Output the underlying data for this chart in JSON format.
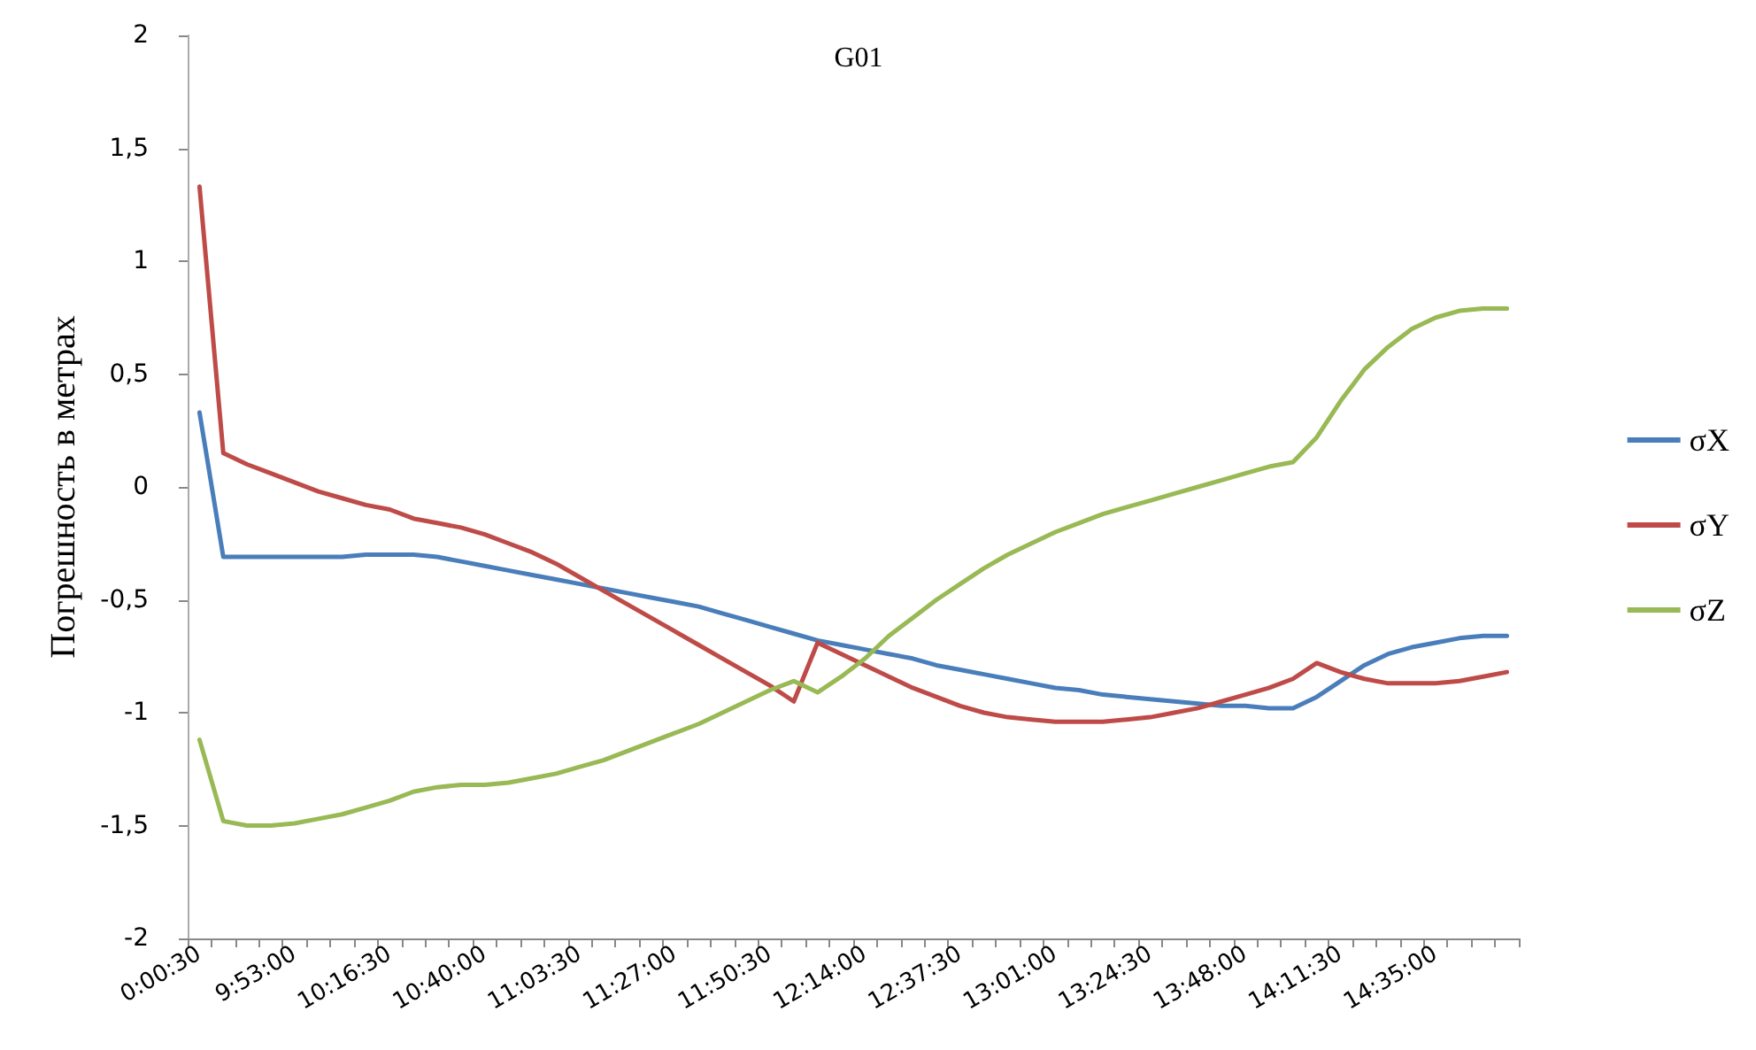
{
  "chart_data": {
    "type": "line",
    "title": "G01",
    "ylabel": "Погрешность в метрах",
    "categories": [
      "0:00:30",
      null,
      null,
      null,
      "9:53:00",
      null,
      null,
      null,
      "10:16:30",
      null,
      null,
      null,
      "10:40:00",
      null,
      null,
      null,
      "11:03:30",
      null,
      null,
      null,
      "11:27:00",
      null,
      null,
      null,
      "11:50:30",
      null,
      null,
      null,
      "12:14:00",
      null,
      null,
      null,
      "12:37:30",
      null,
      null,
      null,
      "13:01:00",
      null,
      null,
      null,
      "13:24:30",
      null,
      null,
      null,
      "13:48:00",
      null,
      null,
      null,
      "14:11:30",
      null,
      null,
      null,
      "14:35:00",
      null,
      null,
      null
    ],
    "series": [
      {
        "name": "σX",
        "color": "#4a7ebb",
        "values": [
          0.33,
          -0.31,
          -0.31,
          -0.31,
          -0.31,
          -0.31,
          -0.31,
          -0.3,
          -0.3,
          -0.3,
          -0.31,
          -0.33,
          -0.35,
          -0.37,
          -0.39,
          -0.41,
          -0.43,
          -0.45,
          -0.47,
          -0.49,
          -0.51,
          -0.53,
          -0.56,
          -0.59,
          -0.62,
          -0.65,
          -0.68,
          -0.7,
          -0.72,
          -0.74,
          -0.76,
          -0.79,
          -0.81,
          -0.83,
          -0.85,
          -0.87,
          -0.89,
          -0.9,
          -0.92,
          -0.93,
          -0.94,
          -0.95,
          -0.96,
          -0.97,
          -0.97,
          -0.98,
          -0.98,
          -0.93,
          -0.86,
          -0.79,
          -0.74,
          -0.71,
          -0.69,
          -0.67,
          -0.66,
          -0.66
        ]
      },
      {
        "name": "σY",
        "color": "#be4b48",
        "values": [
          1.33,
          0.15,
          0.1,
          0.06,
          0.02,
          -0.02,
          -0.05,
          -0.08,
          -0.1,
          -0.14,
          -0.16,
          -0.18,
          -0.21,
          -0.25,
          -0.29,
          -0.34,
          -0.4,
          -0.46,
          -0.52,
          -0.58,
          -0.64,
          -0.7,
          -0.76,
          -0.82,
          -0.88,
          -0.95,
          -0.69,
          -0.74,
          -0.79,
          -0.84,
          -0.89,
          -0.93,
          -0.97,
          -1.0,
          -1.02,
          -1.03,
          -1.04,
          -1.04,
          -1.04,
          -1.03,
          -1.02,
          -1.0,
          -0.98,
          -0.95,
          -0.92,
          -0.89,
          -0.85,
          -0.78,
          -0.82,
          -0.85,
          -0.87,
          -0.87,
          -0.87,
          -0.86,
          -0.84,
          -0.82
        ]
      },
      {
        "name": "σZ",
        "color": "#98b954",
        "values": [
          -1.12,
          -1.48,
          -1.5,
          -1.5,
          -1.49,
          -1.47,
          -1.45,
          -1.42,
          -1.39,
          -1.35,
          -1.33,
          -1.32,
          -1.32,
          -1.31,
          -1.29,
          -1.27,
          -1.24,
          -1.21,
          -1.17,
          -1.13,
          -1.09,
          -1.05,
          -1.0,
          -0.95,
          -0.9,
          -0.86,
          -0.91,
          -0.84,
          -0.76,
          -0.66,
          -0.58,
          -0.5,
          -0.43,
          -0.36,
          -0.3,
          -0.25,
          -0.2,
          -0.16,
          -0.12,
          -0.09,
          -0.06,
          -0.03,
          0.0,
          0.03,
          0.06,
          0.09,
          0.11,
          0.22,
          0.38,
          0.52,
          0.62,
          0.7,
          0.75,
          0.78,
          0.79,
          0.79
        ]
      }
    ],
    "ylim": [
      -2,
      2
    ],
    "yticks": [
      {
        "value": -2,
        "label": "-2"
      },
      {
        "value": -1.5,
        "label": "-1,5"
      },
      {
        "value": -1,
        "label": "-1"
      },
      {
        "value": -0.5,
        "label": "-0,5"
      },
      {
        "value": 0,
        "label": "0"
      },
      {
        "value": 0.5,
        "label": "0,5"
      },
      {
        "value": 1,
        "label": "1"
      },
      {
        "value": 1.5,
        "label": "1,5"
      },
      {
        "value": 2,
        "label": "2"
      }
    ],
    "grid": false,
    "legend": "right",
    "marker": "none",
    "line_style": "solid"
  }
}
